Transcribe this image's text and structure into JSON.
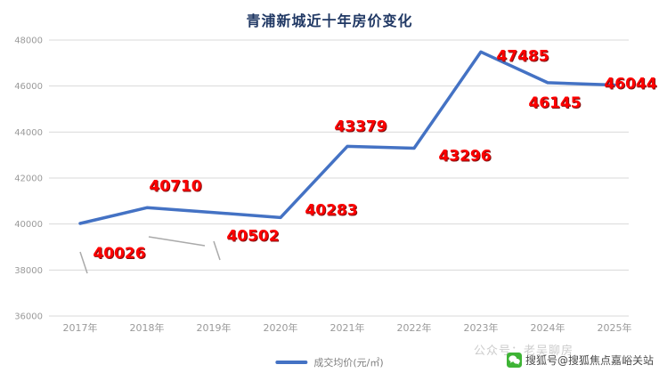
{
  "title": "青浦新城近十年房价变化",
  "legend": {
    "label": "成交均价(元/㎡)",
    "color": "#4472c4"
  },
  "watermarks": {
    "faint_text": "公众号：老吴聊房",
    "sohu_text": "搜狐号@搜狐焦点嘉峪关站",
    "wechat_icon_color": "#3eb435"
  },
  "chart_data": {
    "type": "line",
    "title": "青浦新城近十年房价变化",
    "categories": [
      "2017年",
      "2018年",
      "2019年",
      "2020年",
      "2021年",
      "2022年",
      "2023年",
      "2024年",
      "2025年"
    ],
    "values": [
      40026,
      40710,
      40502,
      40283,
      43379,
      43296,
      47485,
      46145,
      46044
    ],
    "series_name": "成交均价(元/㎡)",
    "xlabel": "",
    "ylabel": "",
    "ylim": [
      36000,
      48000
    ],
    "yticks": [
      36000,
      38000,
      40000,
      42000,
      44000,
      46000,
      48000
    ],
    "grid": true,
    "legend_position": "bottom",
    "line_color": "#4472c4",
    "label_color": "#ff0000",
    "label_shadow_color": "#7f1010",
    "grid_color": "#d9d9d9",
    "tick_color": "#9a9a9a"
  }
}
